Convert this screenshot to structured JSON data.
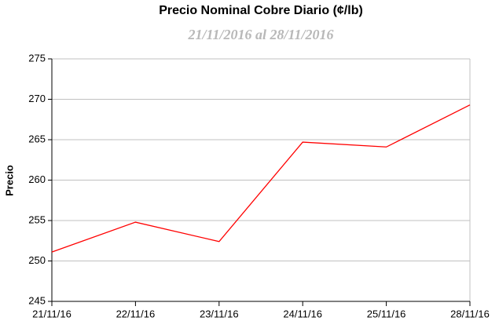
{
  "chart_data": {
    "type": "line",
    "title": "Precio Nominal Cobre Diario (¢/lb)",
    "subtitle": "21/11/2016 al 28/11/2016",
    "y_label": "Precio",
    "categories": [
      "21/11/16",
      "22/11/16",
      "23/11/16",
      "24/11/16",
      "25/11/16",
      "28/11/16"
    ],
    "series": [
      {
        "name": "Precio",
        "color": "#ff0000",
        "values": [
          251.1,
          254.8,
          252.4,
          264.7,
          264.1,
          269.3
        ]
      }
    ],
    "ylim": [
      245,
      275
    ],
    "yticks": [
      245,
      250,
      255,
      260,
      265,
      270,
      275
    ],
    "grid": true
  }
}
